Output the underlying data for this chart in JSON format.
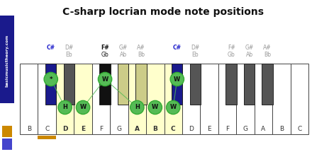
{
  "title": "C-sharp locrian mode note positions",
  "white_notes": [
    "B",
    "C",
    "D",
    "E",
    "F",
    "G",
    "A",
    "B",
    "C",
    "D",
    "E",
    "F",
    "G",
    "A",
    "B",
    "C"
  ],
  "highlighted_white_idx": [
    2,
    3,
    6,
    7,
    8
  ],
  "black_after_white": [
    1,
    2,
    4,
    5,
    6,
    8,
    9,
    11,
    12,
    13
  ],
  "black_colors": [
    "#1a1a8c",
    "#555555",
    "#111111",
    "#aaaaaa",
    "#aaaaaa",
    "#1a1a8c",
    "#555555",
    "#555555",
    "#555555",
    "#555555"
  ],
  "black_labels": [
    {
      "sharp": "C#",
      "flat": "",
      "blue": true
    },
    {
      "sharp": "D#",
      "flat": "Eb",
      "blue": false
    },
    {
      "sharp": "F#",
      "flat": "Gb",
      "blue": false,
      "bold": true
    },
    {
      "sharp": "G#",
      "flat": "Ab",
      "blue": false
    },
    {
      "sharp": "A#",
      "flat": "Bb",
      "blue": false
    },
    {
      "sharp": "C#",
      "flat": "",
      "blue": true
    },
    {
      "sharp": "D#",
      "flat": "Eb",
      "blue": false
    },
    {
      "sharp": "F#",
      "flat": "Gb",
      "blue": false
    },
    {
      "sharp": "G#",
      "flat": "Ab",
      "blue": false
    },
    {
      "sharp": "A#",
      "flat": "Bb",
      "blue": false
    }
  ],
  "black_highlighted_yellow_idx": [
    3,
    4
  ],
  "green_circles": [
    {
      "type": "black",
      "bk_idx": 0,
      "label": "*"
    },
    {
      "type": "white",
      "wk_idx": 2,
      "label": "H"
    },
    {
      "type": "white",
      "wk_idx": 3,
      "label": "W"
    },
    {
      "type": "black",
      "bk_idx": 2,
      "label": "W"
    },
    {
      "type": "white",
      "wk_idx": 6,
      "label": "H"
    },
    {
      "type": "white",
      "wk_idx": 7,
      "label": "W"
    },
    {
      "type": "white",
      "wk_idx": 8,
      "label": "W"
    },
    {
      "type": "black",
      "bk_idx": 5,
      "label": "W"
    }
  ],
  "connecting_lines": [
    [
      0,
      1
    ],
    [
      2,
      3
    ],
    [
      3,
      4
    ],
    [
      6,
      7
    ]
  ],
  "colors": {
    "white_key": "#ffffff",
    "white_highlighted": "#ffffcc",
    "black_default": "#555555",
    "green_fill": "#55bb55",
    "green_border": "#33aa33",
    "green_line": "#55bb55",
    "orange_bar": "#cc8800",
    "blue_label": "#2222cc",
    "gray_label": "#999999",
    "black_label": "#111111",
    "sidebar_bg": "#111111",
    "sidebar_text_bg": "#1a1a8c"
  }
}
